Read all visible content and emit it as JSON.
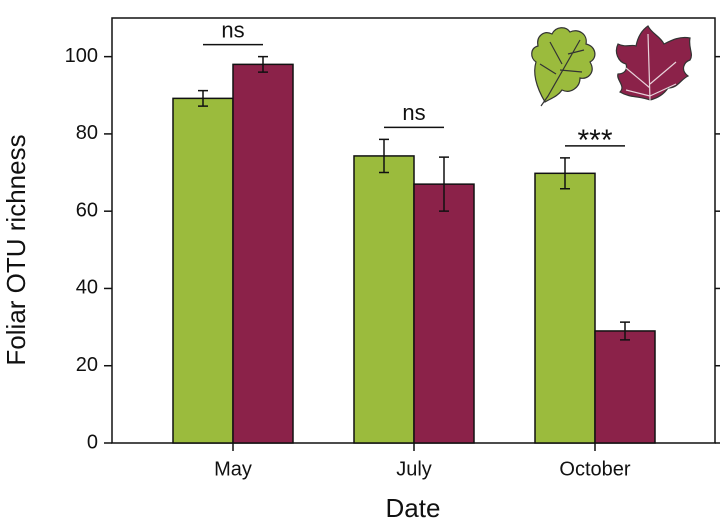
{
  "chart_data": {
    "type": "bar",
    "x_label": "Date",
    "y_label": "Foliar OTU richness",
    "categories": [
      "May",
      "July",
      "October"
    ],
    "series": [
      {
        "color": "#9bbb3d",
        "values": [
          89.2,
          74.3,
          69.8
        ],
        "errors": [
          2.0,
          4.3,
          4.0
        ]
      },
      {
        "color": "#8b2249",
        "values": [
          98.0,
          67.0,
          29.0
        ],
        "errors": [
          2.0,
          7.0,
          2.3
        ]
      }
    ],
    "annotations": [
      "ns",
      "ns",
      "***"
    ],
    "ylim": [
      0,
      110
    ],
    "yticks": [
      0,
      20,
      40,
      60,
      80,
      100
    ]
  }
}
